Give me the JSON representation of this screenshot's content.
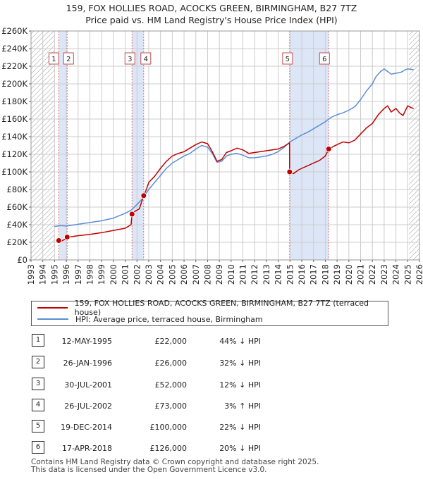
{
  "header": {
    "title_line1": "159, FOX HOLLIES ROAD, ACOCKS GREEN, BIRMINGHAM, B27 7TZ",
    "title_line2": "Price paid vs. HM Land Registry's House Price Index (HPI)"
  },
  "colors": {
    "property": "#c00000",
    "hpi": "#5b8ed6",
    "band": "#dde6f7",
    "vline": "#e07070",
    "grid": "#cccccc",
    "hatch": "#999999"
  },
  "chart_data": {
    "type": "line",
    "title": "Price paid vs. HM Land Registry's House Price Index (HPI)",
    "xlim": [
      1993,
      2026
    ],
    "ylim": [
      0,
      260000
    ],
    "x_ticks": [
      "1993",
      "1994",
      "1995",
      "1996",
      "1997",
      "1998",
      "1999",
      "2000",
      "2001",
      "2002",
      "2003",
      "2004",
      "2005",
      "2006",
      "2007",
      "2008",
      "2009",
      "2010",
      "2011",
      "2012",
      "2013",
      "2014",
      "2015",
      "2016",
      "2017",
      "2018",
      "2019",
      "2020",
      "2021",
      "2022",
      "2023",
      "2024",
      "2025",
      "2026"
    ],
    "y_ticks": [
      "£0",
      "£20K",
      "£40K",
      "£60K",
      "£80K",
      "£100K",
      "£120K",
      "£140K",
      "£160K",
      "£180K",
      "£200K",
      "£220K",
      "£240K",
      "£260K"
    ],
    "y_tick_values": [
      0,
      20000,
      40000,
      60000,
      80000,
      100000,
      120000,
      140000,
      160000,
      180000,
      200000,
      220000,
      240000,
      260000
    ],
    "hatched_ranges": [
      [
        1993,
        1995.0
      ],
      [
        2025.1,
        2026
      ]
    ],
    "shaded_bands": [
      [
        1995.36,
        1996.07
      ],
      [
        2001.58,
        2002.57
      ],
      [
        2014.97,
        2018.29
      ]
    ],
    "series": [
      {
        "name": "159, FOX HOLLIES ROAD, ACOCKS GREEN, BIRMINGHAM, B27 7TZ (terraced house)",
        "x": [
          1995.36,
          1995.6,
          1995.9,
          1996.07,
          1996.5,
          1997,
          1998,
          1999,
          2000,
          2001,
          2001.5,
          2001.58,
          2001.8,
          2002.2,
          2002.57,
          2002.8,
          2003,
          2003.5,
          2004,
          2004.5,
          2005,
          2005.5,
          2006,
          2006.5,
          2007,
          2007.5,
          2008,
          2008.4,
          2008.8,
          2009.2,
          2009.6,
          2010,
          2010.5,
          2011,
          2011.5,
          2012,
          2012.5,
          2013,
          2013.5,
          2014,
          2014.5,
          2014.96,
          2014.97,
          2015.3,
          2015.7,
          2016,
          2016.5,
          2017,
          2017.5,
          2018,
          2018.29,
          2018.7,
          2019,
          2019.5,
          2020,
          2020.5,
          2021,
          2021.5,
          2022,
          2022.5,
          2023,
          2023.3,
          2023.6,
          2024,
          2024.3,
          2024.6,
          2025,
          2025.3,
          2025.5
        ],
        "y": [
          22000,
          21500,
          23500,
          26000,
          26500,
          27500,
          29000,
          31000,
          33500,
          36000,
          40000,
          52000,
          55000,
          58000,
          73000,
          80000,
          88000,
          95000,
          104000,
          112000,
          118000,
          121000,
          123000,
          127000,
          131000,
          134000,
          132000,
          123000,
          112000,
          114000,
          122000,
          124000,
          127000,
          125000,
          121000,
          122000,
          123000,
          124000,
          125000,
          126000,
          129000,
          133000,
          100000,
          98000,
          102000,
          104000,
          107000,
          110000,
          113000,
          118000,
          126000,
          129000,
          131000,
          134000,
          133000,
          136000,
          143000,
          150000,
          155000,
          165000,
          172000,
          175000,
          168000,
          172000,
          167000,
          164000,
          175000,
          173000,
          172000
        ]
      },
      {
        "name": "HPI: Average price, terraced house, Birmingham",
        "x": [
          1995.0,
          1995.5,
          1996,
          1996.5,
          1997,
          1998,
          1999,
          2000,
          2001,
          2001.5,
          2002,
          2002.5,
          2003,
          2003.5,
          2004,
          2004.5,
          2005,
          2005.5,
          2006,
          2006.5,
          2007,
          2007.5,
          2008,
          2008.4,
          2008.8,
          2009.2,
          2009.6,
          2010,
          2010.5,
          2011,
          2011.5,
          2012,
          2012.5,
          2013,
          2013.5,
          2014,
          2014.5,
          2015,
          2015.5,
          2016,
          2016.5,
          2017,
          2017.5,
          2018,
          2018.5,
          2019,
          2019.5,
          2020,
          2020.5,
          2021,
          2021.5,
          2022,
          2022.3,
          2022.7,
          2023,
          2023.3,
          2023.6,
          2024,
          2024.4,
          2024.8,
          2025,
          2025.5
        ],
        "y": [
          38000,
          39000,
          38500,
          39500,
          40500,
          42500,
          44500,
          47500,
          53000,
          56500,
          63000,
          70000,
          80000,
          88000,
          96000,
          104000,
          110000,
          114000,
          118000,
          121000,
          126000,
          130000,
          128000,
          121000,
          111000,
          112000,
          118000,
          120000,
          121000,
          119000,
          116000,
          116000,
          117000,
          118000,
          120000,
          123000,
          128000,
          134000,
          138000,
          142000,
          145000,
          149000,
          153000,
          157000,
          162000,
          165000,
          167000,
          170000,
          174000,
          182000,
          192000,
          200000,
          208000,
          214000,
          217000,
          214000,
          211000,
          212000,
          213000,
          216000,
          217000,
          216000
        ]
      }
    ],
    "transactions": [
      {
        "label": "1",
        "x": 1995.36,
        "y": 22000
      },
      {
        "label": "2",
        "x": 1996.07,
        "y": 26000
      },
      {
        "label": "3",
        "x": 2001.58,
        "y": 52000
      },
      {
        "label": "4",
        "x": 2002.57,
        "y": 73000
      },
      {
        "label": "5",
        "x": 2014.97,
        "y": 100000
      },
      {
        "label": "6",
        "x": 2018.29,
        "y": 126000
      }
    ]
  },
  "legend": {
    "property_label": "159, FOX HOLLIES ROAD, ACOCKS GREEN, BIRMINGHAM, B27 7TZ (terraced house)",
    "hpi_label": "HPI: Average price, terraced house, Birmingham"
  },
  "table": {
    "rows": [
      {
        "num": "1",
        "date": "12-MAY-1995",
        "price": "£22,000",
        "hpi": "44% ↓ HPI"
      },
      {
        "num": "2",
        "date": "26-JAN-1996",
        "price": "£26,000",
        "hpi": "32% ↓ HPI"
      },
      {
        "num": "3",
        "date": "30-JUL-2001",
        "price": "£52,000",
        "hpi": "12% ↓ HPI"
      },
      {
        "num": "4",
        "date": "26-JUL-2002",
        "price": "£73,000",
        "hpi": "3% ↑ HPI"
      },
      {
        "num": "5",
        "date": "19-DEC-2014",
        "price": "£100,000",
        "hpi": "22% ↓ HPI"
      },
      {
        "num": "6",
        "date": "17-APR-2018",
        "price": "£126,000",
        "hpi": "20% ↓ HPI"
      }
    ]
  },
  "footer": {
    "line1": "Contains HM Land Registry data © Crown copyright and database right 2025.",
    "line2": "This data is licensed under the Open Government Licence v3.0."
  }
}
